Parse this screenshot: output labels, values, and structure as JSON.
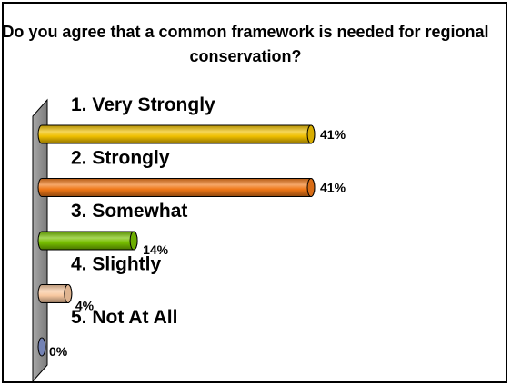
{
  "chart_data": {
    "type": "bar",
    "orientation": "horizontal",
    "style": "3d-cylinder",
    "title": "Do you agree that a common framework is needed for regional conservation?",
    "categories": [
      "1.  Very Strongly",
      "2.  Strongly",
      "3.  Somewhat",
      "4.  Slightly",
      "5.  Not At All"
    ],
    "values": [
      41,
      41,
      14,
      4,
      0
    ],
    "value_labels": [
      "41%",
      "41%",
      "14%",
      "4%",
      "0%"
    ],
    "unit": "%",
    "xlim": [
      0,
      41
    ],
    "grid": false,
    "legend": "none",
    "colors": [
      "#f0c000",
      "#f07818",
      "#78c000",
      "#f8c8a0",
      "#8090c8"
    ]
  }
}
